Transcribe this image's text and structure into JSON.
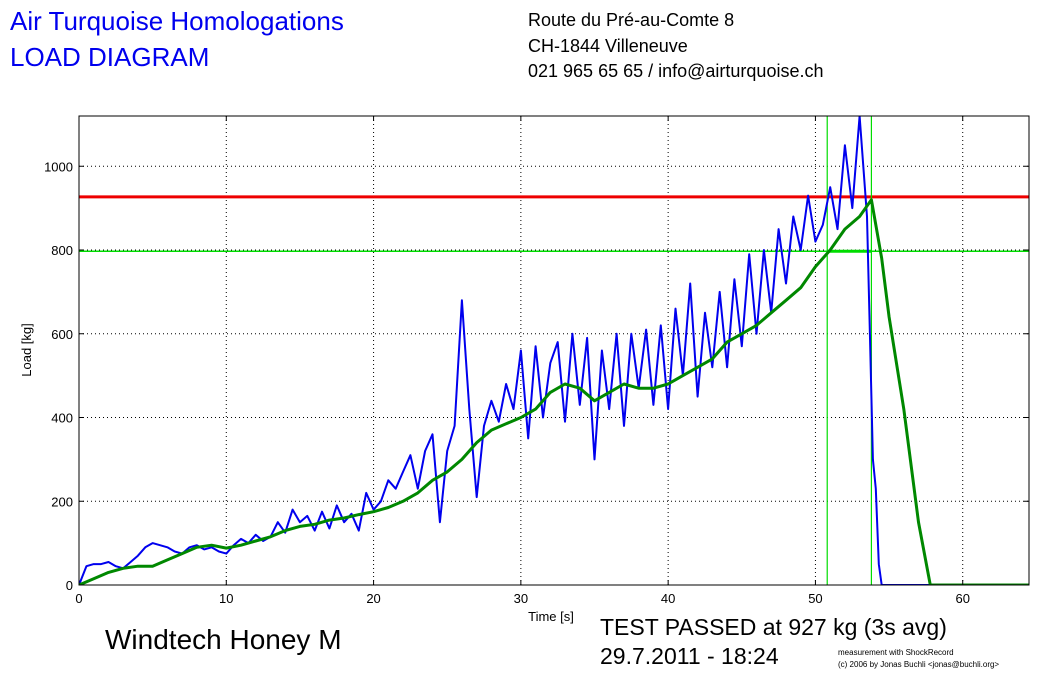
{
  "header": {
    "company": "Air Turquoise Homologations",
    "doc_title": "LOAD DIAGRAM",
    "address_line1": "Route du Pré-au-Comte 8",
    "address_line2": "CH-1844 Villeneuve",
    "contact": "021 965 65 65 / info@airturquoise.ch"
  },
  "footer": {
    "glider": "Windtech Honey M",
    "result": "TEST PASSED at 927 kg (3s avg)",
    "datetime": "29.7.2011 - 18:24",
    "credit_line1": "measurement with ShockRecord",
    "credit_line2": "(c) 2006 by Jonas Buchli <jonas@buchli.org>"
  },
  "chart_data": {
    "type": "line",
    "xlabel": "Time [s]",
    "ylabel": "Load [kg]",
    "xlim": [
      0,
      64.5
    ],
    "ylim": [
      0,
      1120
    ],
    "xticks": [
      0,
      10,
      20,
      30,
      40,
      50,
      60
    ],
    "yticks": [
      0,
      200,
      400,
      600,
      800,
      1000
    ],
    "grid": "dotted",
    "reference_lines": [
      {
        "color": "#ee0000",
        "y": 927
      },
      {
        "color": "#00dd00",
        "y": 797
      }
    ],
    "markers": [
      {
        "color": "#00dd00",
        "x": 50.8
      },
      {
        "color": "#00dd00",
        "x": 53.8
      }
    ],
    "series": [
      {
        "color": "#0000ee",
        "x": [
          0,
          0.5,
          1,
          1.5,
          2,
          2.5,
          3,
          3.5,
          4,
          4.5,
          5,
          5.5,
          6,
          6.5,
          7,
          7.5,
          8,
          8.5,
          9,
          9.5,
          10,
          10.5,
          11,
          11.5,
          12,
          12.5,
          13,
          13.5,
          14,
          14.5,
          15,
          15.5,
          16,
          16.5,
          17,
          17.5,
          18,
          18.5,
          19,
          19.5,
          20,
          20.5,
          21,
          21.5,
          22,
          22.5,
          23,
          23.5,
          24,
          24.5,
          25,
          25.5,
          26,
          26.5,
          27,
          27.5,
          28,
          28.5,
          29,
          29.5,
          30,
          30.5,
          31,
          31.5,
          32,
          32.5,
          33,
          33.5,
          34,
          34.5,
          35,
          35.5,
          36,
          36.5,
          37,
          37.5,
          38,
          38.5,
          39,
          39.5,
          40,
          40.5,
          41,
          41.5,
          42,
          42.5,
          43,
          43.5,
          44,
          44.5,
          45,
          45.5,
          46,
          46.5,
          47,
          47.5,
          48,
          48.5,
          49,
          49.5,
          50,
          50.5,
          51,
          51.5,
          52,
          52.5,
          53,
          53.5,
          53.7,
          53.9,
          54.1,
          54.3,
          54.5,
          55,
          56,
          57,
          58,
          64.5
        ],
        "y": [
          0,
          45,
          50,
          50,
          55,
          45,
          40,
          55,
          70,
          90,
          100,
          95,
          90,
          80,
          75,
          90,
          95,
          85,
          90,
          80,
          75,
          95,
          110,
          100,
          120,
          105,
          115,
          150,
          125,
          180,
          150,
          165,
          130,
          175,
          135,
          190,
          150,
          170,
          130,
          220,
          180,
          200,
          250,
          230,
          270,
          310,
          230,
          320,
          360,
          150,
          320,
          380,
          680,
          420,
          210,
          380,
          440,
          390,
          480,
          420,
          560,
          350,
          570,
          400,
          530,
          580,
          390,
          600,
          430,
          590,
          300,
          560,
          420,
          600,
          380,
          600,
          470,
          610,
          430,
          620,
          420,
          660,
          500,
          720,
          450,
          650,
          520,
          700,
          520,
          730,
          570,
          790,
          600,
          800,
          650,
          850,
          720,
          880,
          800,
          930,
          820,
          860,
          950,
          850,
          1050,
          900,
          1120,
          880,
          600,
          300,
          230,
          50,
          0,
          0,
          0,
          0,
          0,
          0
        ]
      },
      {
        "color": "#008800",
        "x": [
          0,
          1,
          2,
          3,
          4,
          5,
          6,
          7,
          8,
          9,
          10,
          11,
          12,
          13,
          14,
          15,
          16,
          17,
          18,
          19,
          20,
          21,
          22,
          23,
          24,
          25,
          26,
          27,
          28,
          29,
          30,
          31,
          32,
          33,
          34,
          35,
          36,
          37,
          38,
          39,
          40,
          41,
          42,
          43,
          44,
          45,
          46,
          47,
          48,
          49,
          50,
          51,
          52,
          53,
          53.8,
          54.5,
          55,
          56,
          57,
          57.8,
          58.5,
          60,
          64.5
        ],
        "y": [
          0,
          15,
          30,
          40,
          45,
          45,
          60,
          75,
          90,
          95,
          88,
          95,
          105,
          115,
          130,
          140,
          145,
          155,
          160,
          168,
          175,
          185,
          200,
          220,
          250,
          270,
          300,
          340,
          370,
          385,
          400,
          420,
          460,
          480,
          470,
          440,
          460,
          480,
          470,
          470,
          480,
          500,
          520,
          540,
          580,
          600,
          620,
          650,
          680,
          710,
          760,
          800,
          850,
          880,
          920,
          780,
          640,
          420,
          150,
          0,
          0,
          0,
          0
        ]
      }
    ]
  }
}
